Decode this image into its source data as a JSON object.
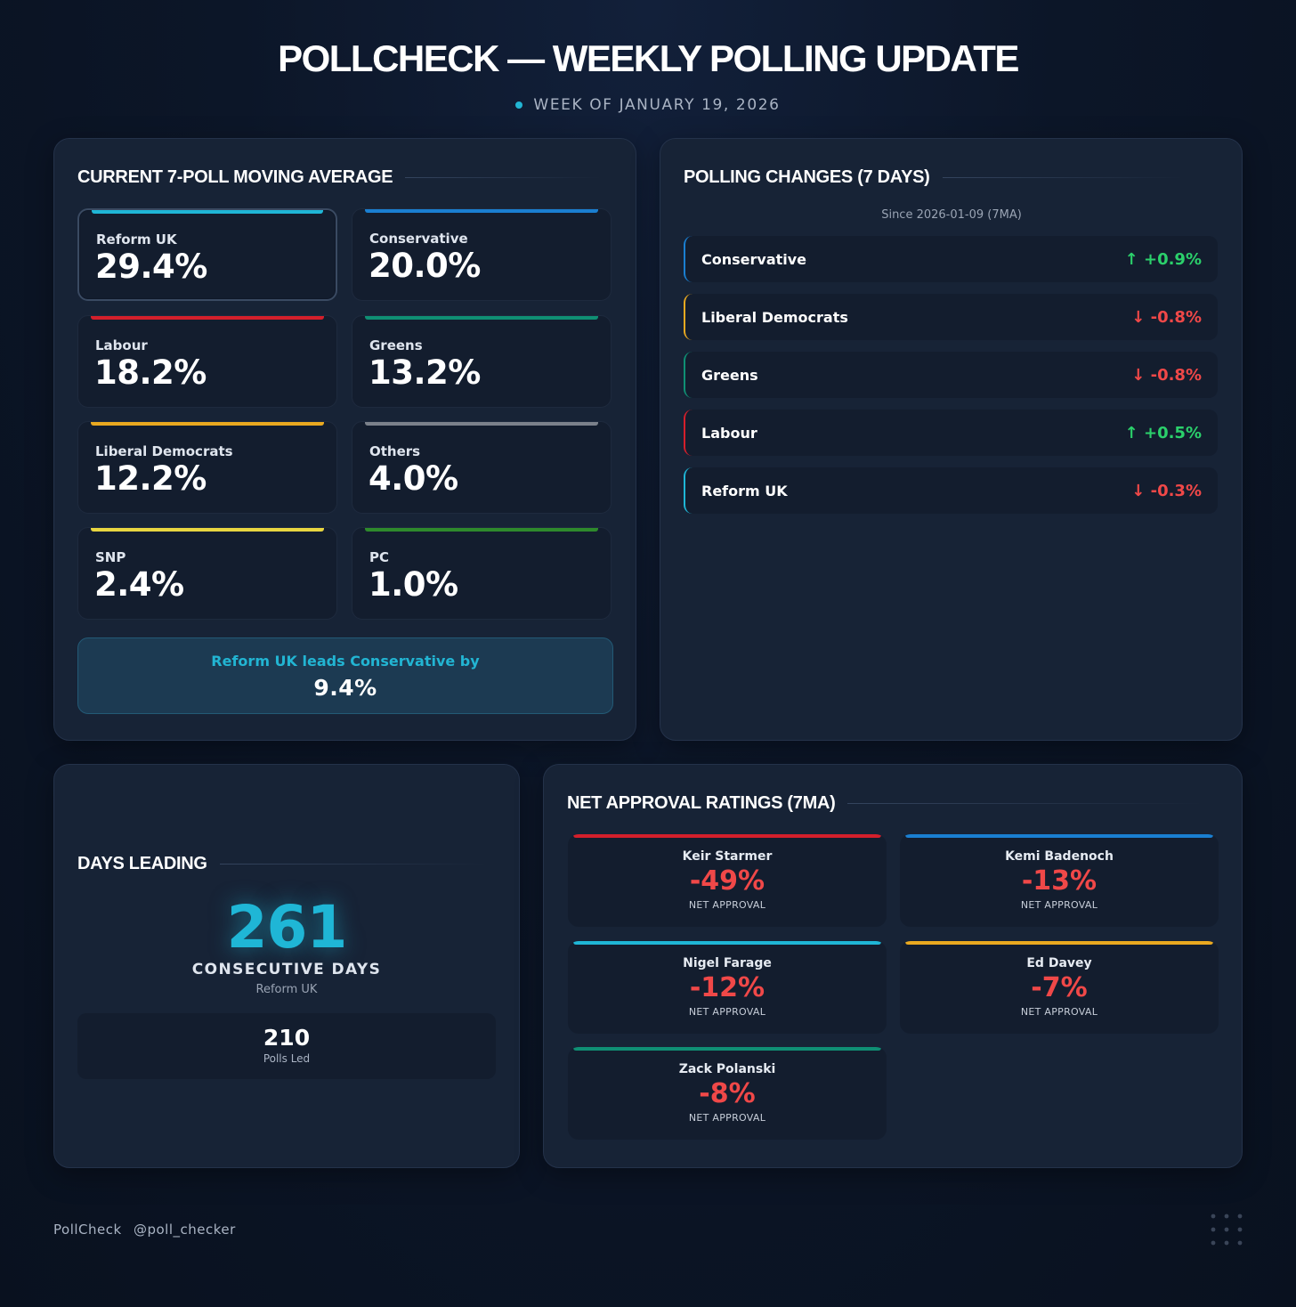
{
  "header": {
    "title": "POLLCHECK — WEEKLY POLLING UPDATE",
    "subtitle": "WEEK OF JANUARY 19, 2026"
  },
  "moving_average": {
    "title": "CURRENT 7-POLL MOVING AVERAGE",
    "parties": [
      {
        "name": "Reform UK",
        "value": "29.4%",
        "color": "#1fb6d6"
      },
      {
        "name": "Conservative",
        "value": "20.0%",
        "color": "#1a7fd1"
      },
      {
        "name": "Labour",
        "value": "18.2%",
        "color": "#d41f2b"
      },
      {
        "name": "Greens",
        "value": "13.2%",
        "color": "#0f8f74"
      },
      {
        "name": "Liberal Democrats",
        "value": "12.2%",
        "color": "#eaa920"
      },
      {
        "name": "Others",
        "value": "4.0%",
        "color": "#7b818b"
      },
      {
        "name": "SNP",
        "value": "2.4%",
        "color": "#e8d540"
      },
      {
        "name": "PC",
        "value": "1.0%",
        "color": "#2e8a2c"
      }
    ],
    "lead_text": "Reform UK leads Conservative by",
    "lead_value": "9.4%"
  },
  "changes": {
    "title": "POLLING CHANGES (7 DAYS)",
    "since": "Since 2026-01-09 (7MA)",
    "rows": [
      {
        "party": "Conservative",
        "delta": "+0.9%",
        "direction": "up",
        "color": "#1a7fd1"
      },
      {
        "party": "Liberal Democrats",
        "delta": "-0.8%",
        "direction": "down",
        "color": "#eaa920"
      },
      {
        "party": "Greens",
        "delta": "-0.8%",
        "direction": "down",
        "color": "#0f8f74"
      },
      {
        "party": "Labour",
        "delta": "+0.5%",
        "direction": "up",
        "color": "#d41f2b"
      },
      {
        "party": "Reform UK",
        "delta": "-0.3%",
        "direction": "down",
        "color": "#1fb6d6"
      }
    ]
  },
  "days_leading": {
    "title": "DAYS LEADING",
    "days": "261",
    "days_label": "CONSECUTIVE DAYS",
    "leader": "Reform UK",
    "polls_led": "210",
    "polls_label": "Polls Led"
  },
  "approval": {
    "title": "NET APPROVAL RATINGS (7MA)",
    "leaders": [
      {
        "name": "Keir Starmer",
        "value": "-49%",
        "label": "NET APPROVAL",
        "color": "#d41f2b"
      },
      {
        "name": "Kemi Badenoch",
        "value": "-13%",
        "label": "NET APPROVAL",
        "color": "#1a7fd1"
      },
      {
        "name": "Nigel Farage",
        "value": "-12%",
        "label": "NET APPROVAL",
        "color": "#1fb6d6"
      },
      {
        "name": "Ed Davey",
        "value": "-7%",
        "label": "NET APPROVAL",
        "color": "#eaa920"
      },
      {
        "name": "Zack Polanski",
        "value": "-8%",
        "label": "NET APPROVAL",
        "color": "#0f8f74"
      }
    ]
  },
  "footer": {
    "brand": "PollCheck",
    "handle": "@poll_checker"
  }
}
